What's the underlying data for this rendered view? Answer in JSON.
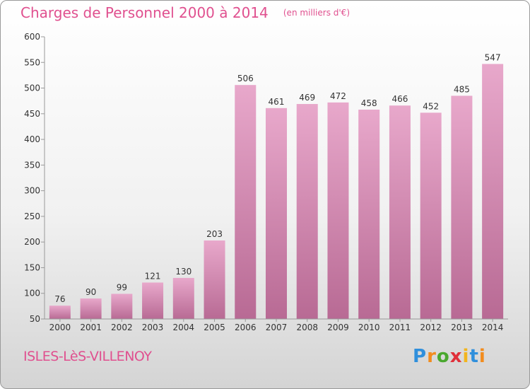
{
  "title": "Charges de Personnel 2000 à 2014",
  "subtitle": "(en milliers d'€)",
  "commune": "ISLES-LèS-VILLENOY",
  "logo": {
    "text": "Proxiti",
    "letter_colors": [
      "#2f8fdc",
      "#f28c1e",
      "#4aa82f",
      "#e0303a",
      "#f2b51e",
      "#2f8fdc",
      "#f28c1e"
    ]
  },
  "colors": {
    "bar_top": "#e8a8cb",
    "bar_bottom": "#b86a94",
    "title": "#e0508f"
  },
  "chart_data": {
    "type": "bar",
    "title": "Charges de Personnel 2000 à 2014",
    "subtitle": "(en milliers d'€)",
    "categories": [
      "2000",
      "2001",
      "2002",
      "2003",
      "2004",
      "2005",
      "2006",
      "2007",
      "2008",
      "2009",
      "2010",
      "2011",
      "2012",
      "2013",
      "2014"
    ],
    "values": [
      76,
      90,
      99,
      121,
      130,
      203,
      506,
      461,
      469,
      472,
      458,
      466,
      452,
      485,
      547
    ],
    "ylim": [
      50,
      600
    ],
    "yticks": [
      50,
      100,
      150,
      200,
      250,
      300,
      350,
      400,
      450,
      500,
      550,
      600
    ],
    "grid": false,
    "legend": "none"
  }
}
